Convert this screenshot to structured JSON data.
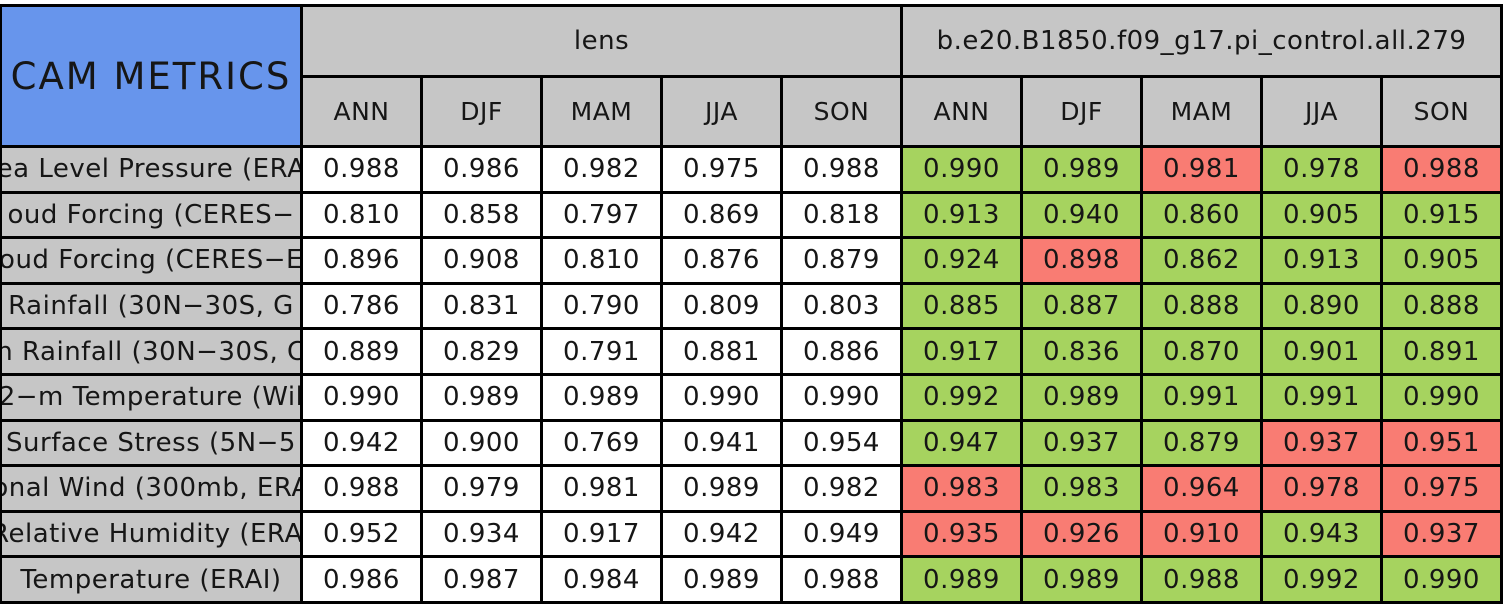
{
  "colors": {
    "title_bg": "#6795EC",
    "header_bg": "#C6C6C6",
    "cell_bg": "#FFFFFF",
    "good_bg": "#A6D35F",
    "bad_bg": "#F97C73",
    "border": "#000000",
    "text": "#161616"
  },
  "chart_data": {
    "type": "table",
    "title": "CAM METRICS",
    "column_groups": [
      {
        "label": "lens"
      },
      {
        "label": "b.e20.B1850.f09_g17.pi_control.all.279"
      }
    ],
    "season_columns": [
      "ANN",
      "DJF",
      "MAM",
      "JJA",
      "SON"
    ],
    "highlight_legend": {
      "good": "green",
      "bad": "red"
    },
    "rows": [
      {
        "label": "ea Level Pressure (ERA",
        "lens": [
          "0.988",
          "0.986",
          "0.982",
          "0.975",
          "0.988"
        ],
        "control": [
          {
            "v": "0.990",
            "flag": "good"
          },
          {
            "v": "0.989",
            "flag": "good"
          },
          {
            "v": "0.981",
            "flag": "bad"
          },
          {
            "v": "0.978",
            "flag": "good"
          },
          {
            "v": "0.988",
            "flag": "bad"
          }
        ]
      },
      {
        "label": "oud Forcing (CERES−",
        "lens": [
          "0.810",
          "0.858",
          "0.797",
          "0.869",
          "0.818"
        ],
        "control": [
          {
            "v": "0.913",
            "flag": "good"
          },
          {
            "v": "0.940",
            "flag": "good"
          },
          {
            "v": "0.860",
            "flag": "good"
          },
          {
            "v": "0.905",
            "flag": "good"
          },
          {
            "v": "0.915",
            "flag": "good"
          }
        ]
      },
      {
        "label": "oud Forcing (CERES−E",
        "lens": [
          "0.896",
          "0.908",
          "0.810",
          "0.876",
          "0.879"
        ],
        "control": [
          {
            "v": "0.924",
            "flag": "good"
          },
          {
            "v": "0.898",
            "flag": "bad"
          },
          {
            "v": "0.862",
            "flag": "good"
          },
          {
            "v": "0.913",
            "flag": "good"
          },
          {
            "v": "0.905",
            "flag": "good"
          }
        ]
      },
      {
        "label": "Rainfall (30N−30S, G",
        "lens": [
          "0.786",
          "0.831",
          "0.790",
          "0.809",
          "0.803"
        ],
        "control": [
          {
            "v": "0.885",
            "flag": "good"
          },
          {
            "v": "0.887",
            "flag": "good"
          },
          {
            "v": "0.888",
            "flag": "good"
          },
          {
            "v": "0.890",
            "flag": "good"
          },
          {
            "v": "0.888",
            "flag": "good"
          }
        ]
      },
      {
        "label": "n Rainfall (30N−30S, C",
        "lens": [
          "0.889",
          "0.829",
          "0.791",
          "0.881",
          "0.886"
        ],
        "control": [
          {
            "v": "0.917",
            "flag": "good"
          },
          {
            "v": "0.836",
            "flag": "good"
          },
          {
            "v": "0.870",
            "flag": "good"
          },
          {
            "v": "0.901",
            "flag": "good"
          },
          {
            "v": "0.891",
            "flag": "good"
          }
        ]
      },
      {
        "label": "2−m Temperature (Wil",
        "lens": [
          "0.990",
          "0.989",
          "0.989",
          "0.990",
          "0.990"
        ],
        "control": [
          {
            "v": "0.992",
            "flag": "good"
          },
          {
            "v": "0.989",
            "flag": "good"
          },
          {
            "v": "0.991",
            "flag": "good"
          },
          {
            "v": "0.991",
            "flag": "good"
          },
          {
            "v": "0.990",
            "flag": "good"
          }
        ]
      },
      {
        "label": "Surface Stress (5N−5",
        "lens": [
          "0.942",
          "0.900",
          "0.769",
          "0.941",
          "0.954"
        ],
        "control": [
          {
            "v": "0.947",
            "flag": "good"
          },
          {
            "v": "0.937",
            "flag": "good"
          },
          {
            "v": "0.879",
            "flag": "good"
          },
          {
            "v": "0.937",
            "flag": "bad"
          },
          {
            "v": "0.951",
            "flag": "bad"
          }
        ]
      },
      {
        "label": "onal Wind (300mb, ERA",
        "lens": [
          "0.988",
          "0.979",
          "0.981",
          "0.989",
          "0.982"
        ],
        "control": [
          {
            "v": "0.983",
            "flag": "bad"
          },
          {
            "v": "0.983",
            "flag": "good"
          },
          {
            "v": "0.964",
            "flag": "bad"
          },
          {
            "v": "0.978",
            "flag": "bad"
          },
          {
            "v": "0.975",
            "flag": "bad"
          }
        ]
      },
      {
        "label": "Relative Humidity (ERAI",
        "lens": [
          "0.952",
          "0.934",
          "0.917",
          "0.942",
          "0.949"
        ],
        "control": [
          {
            "v": "0.935",
            "flag": "bad"
          },
          {
            "v": "0.926",
            "flag": "bad"
          },
          {
            "v": "0.910",
            "flag": "bad"
          },
          {
            "v": "0.943",
            "flag": "good"
          },
          {
            "v": "0.937",
            "flag": "bad"
          }
        ]
      },
      {
        "label": "Temperature (ERAI)",
        "lens": [
          "0.986",
          "0.987",
          "0.984",
          "0.989",
          "0.988"
        ],
        "control": [
          {
            "v": "0.989",
            "flag": "good"
          },
          {
            "v": "0.989",
            "flag": "good"
          },
          {
            "v": "0.988",
            "flag": "good"
          },
          {
            "v": "0.992",
            "flag": "good"
          },
          {
            "v": "0.990",
            "flag": "good"
          }
        ]
      }
    ]
  }
}
